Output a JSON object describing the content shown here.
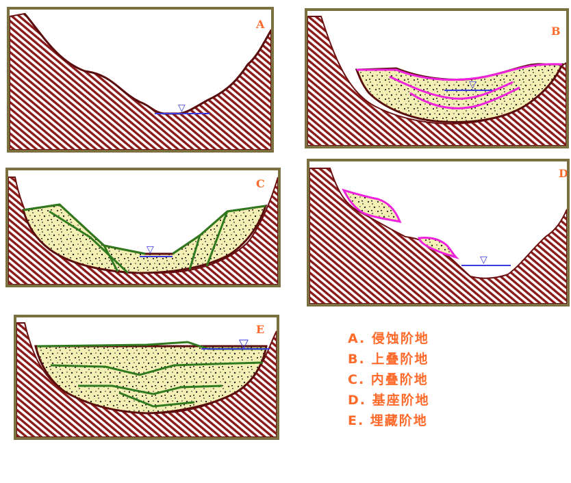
{
  "panels": [
    {
      "id": "A",
      "label": "A"
    },
    {
      "id": "B",
      "label": "B"
    },
    {
      "id": "C",
      "label": "C"
    },
    {
      "id": "D",
      "label": "D"
    },
    {
      "id": "E",
      "label": "E"
    }
  ],
  "legend": [
    "A. 侵蚀阶地",
    "B. 上叠阶地",
    "C. 内叠阶地",
    "D. 基座阶地",
    "E. 埋藏阶地"
  ],
  "water_symbol": "▽",
  "colors": {
    "bedrock_hatch": "#8b1a1a",
    "sediment_fill": "#f4efb4",
    "water_line": "#3a3ae0",
    "terrace_green": "#2f7a1f",
    "terrace_magenta": "#ee22dd",
    "label_orange": "#ff6a2a",
    "frame": "#7a7040"
  }
}
